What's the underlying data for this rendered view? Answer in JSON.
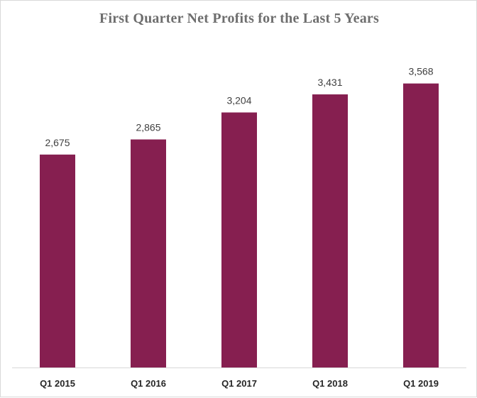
{
  "chart_data": {
    "type": "bar",
    "title": "First Quarter Net Profits for the Last 5 Years",
    "xlabel": "",
    "ylabel": "",
    "categories": [
      "Q1 2015",
      "Q1 2016",
      "Q1 2017",
      "Q1 2018",
      "Q1 2019"
    ],
    "values": [
      2675,
      2865,
      3204,
      3431,
      3568
    ],
    "value_labels": [
      "2,675",
      "2,865",
      "3,204",
      "3,431",
      "3,568"
    ],
    "ylim": [
      0,
      4000
    ],
    "grid": false,
    "legend": "none",
    "bar_color": "#861f50",
    "axis_color": "#d9d9d9"
  }
}
